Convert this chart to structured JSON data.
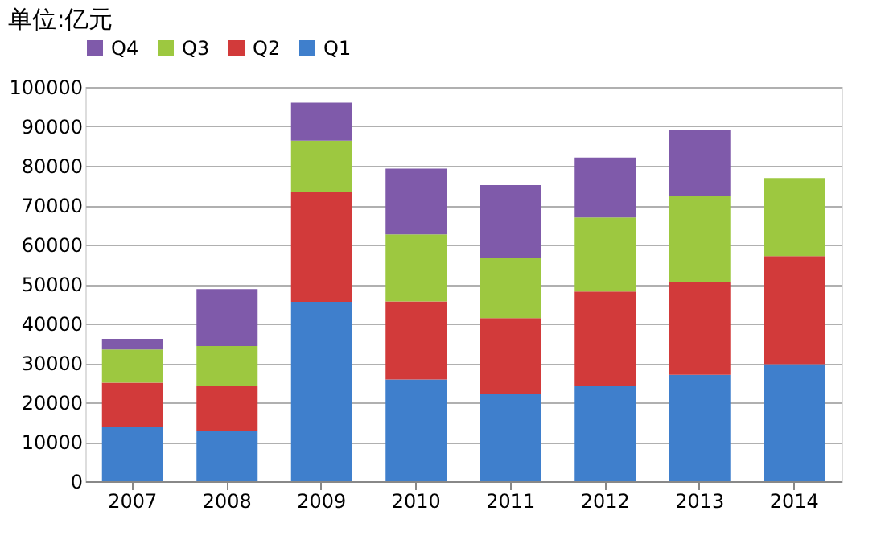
{
  "chart_data": {
    "type": "bar",
    "title": "单位:亿元",
    "stacked": true,
    "categories": [
      "2007",
      "2008",
      "2009",
      "2010",
      "2011",
      "2012",
      "2013",
      "2014"
    ],
    "series": [
      {
        "name": "Q1",
        "color": "#3f7fcc",
        "values": [
          13700,
          12700,
          45500,
          25800,
          22200,
          24100,
          27000,
          29700
        ]
      },
      {
        "name": "Q2",
        "color": "#d23a3a",
        "values": [
          11300,
          11400,
          27800,
          19800,
          19200,
          24000,
          23500,
          27400
        ]
      },
      {
        "name": "Q3",
        "color": "#9dc840",
        "values": [
          8400,
          10200,
          13100,
          17000,
          15200,
          18800,
          21900,
          19800
        ]
      },
      {
        "name": "Q4",
        "color": "#7f5aaa",
        "values": [
          2700,
          14400,
          9600,
          16700,
          18500,
          15200,
          16600,
          null
        ]
      }
    ],
    "ylim": [
      0,
      100000
    ],
    "yticks": [
      0,
      10000,
      20000,
      30000,
      40000,
      50000,
      60000,
      70000,
      80000,
      90000,
      100000
    ],
    "grid": "y",
    "legend": "top"
  }
}
